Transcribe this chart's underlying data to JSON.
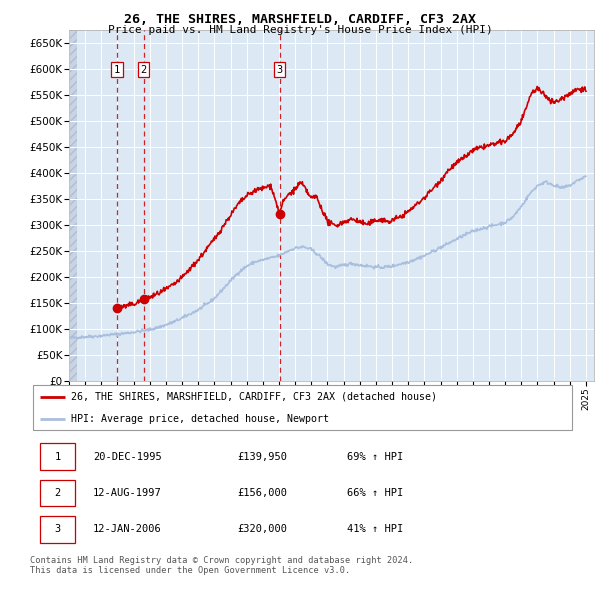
{
  "title": "26, THE SHIRES, MARSHFIELD, CARDIFF, CF3 2AX",
  "subtitle": "Price paid vs. HM Land Registry's House Price Index (HPI)",
  "legend_line1": "26, THE SHIRES, MARSHFIELD, CARDIFF, CF3 2AX (detached house)",
  "legend_line2": "HPI: Average price, detached house, Newport",
  "footnote": "Contains HM Land Registry data © Crown copyright and database right 2024.\nThis data is licensed under the Open Government Licence v3.0.",
  "sale_dates": [
    1995.96,
    1997.62,
    2006.04
  ],
  "sale_prices": [
    139950,
    156000,
    320000
  ],
  "sale_labels": [
    "1",
    "2",
    "3"
  ],
  "sale_info": [
    {
      "label": "1",
      "date": "20-DEC-1995",
      "price": "£139,950",
      "pct": "69% ↑ HPI"
    },
    {
      "label": "2",
      "date": "12-AUG-1997",
      "price": "£156,000",
      "pct": "66% ↑ HPI"
    },
    {
      "label": "3",
      "date": "12-JAN-2006",
      "price": "£320,000",
      "pct": "41% ↑ HPI"
    }
  ],
  "hpi_color": "#aabfde",
  "price_color": "#cc0000",
  "vline_color": "#cc0000",
  "background_color": "#dce9f5",
  "hatch_region_end": 1993.5,
  "ylim": [
    0,
    675000
  ],
  "yticks": [
    0,
    50000,
    100000,
    150000,
    200000,
    250000,
    300000,
    350000,
    400000,
    450000,
    500000,
    550000,
    600000,
    650000
  ],
  "xlim_start": 1993.0,
  "xlim_end": 2025.5,
  "xticks": [
    1993,
    1994,
    1995,
    1996,
    1997,
    1998,
    1999,
    2000,
    2001,
    2002,
    2003,
    2004,
    2005,
    2006,
    2007,
    2008,
    2009,
    2010,
    2011,
    2012,
    2013,
    2014,
    2015,
    2016,
    2017,
    2018,
    2019,
    2020,
    2021,
    2022,
    2023,
    2024,
    2025
  ],
  "hpi_anchors": [
    [
      1993.0,
      82000
    ],
    [
      1993.5,
      83000
    ],
    [
      1994.0,
      84000
    ],
    [
      1994.5,
      85000
    ],
    [
      1995.0,
      86000
    ],
    [
      1995.5,
      88000
    ],
    [
      1996.0,
      89000
    ],
    [
      1996.5,
      91000
    ],
    [
      1997.0,
      93000
    ],
    [
      1997.5,
      95500
    ],
    [
      1998.0,
      98000
    ],
    [
      1998.5,
      102000
    ],
    [
      1999.0,
      107000
    ],
    [
      1999.5,
      113000
    ],
    [
      2000.0,
      120000
    ],
    [
      2000.5,
      128000
    ],
    [
      2001.0,
      136000
    ],
    [
      2001.5,
      146000
    ],
    [
      2002.0,
      158000
    ],
    [
      2002.5,
      175000
    ],
    [
      2003.0,
      192000
    ],
    [
      2003.5,
      208000
    ],
    [
      2004.0,
      220000
    ],
    [
      2004.5,
      228000
    ],
    [
      2005.0,
      232000
    ],
    [
      2005.5,
      236000
    ],
    [
      2006.0,
      240000
    ],
    [
      2006.5,
      248000
    ],
    [
      2007.0,
      255000
    ],
    [
      2007.5,
      257000
    ],
    [
      2008.0,
      252000
    ],
    [
      2008.5,
      240000
    ],
    [
      2009.0,
      224000
    ],
    [
      2009.5,
      218000
    ],
    [
      2010.0,
      222000
    ],
    [
      2010.5,
      225000
    ],
    [
      2011.0,
      222000
    ],
    [
      2011.5,
      220000
    ],
    [
      2012.0,
      218000
    ],
    [
      2012.5,
      218000
    ],
    [
      2013.0,
      220000
    ],
    [
      2013.5,
      224000
    ],
    [
      2014.0,
      228000
    ],
    [
      2014.5,
      234000
    ],
    [
      2015.0,
      240000
    ],
    [
      2015.5,
      248000
    ],
    [
      2016.0,
      256000
    ],
    [
      2016.5,
      264000
    ],
    [
      2017.0,
      272000
    ],
    [
      2017.5,
      280000
    ],
    [
      2018.0,
      287000
    ],
    [
      2018.5,
      292000
    ],
    [
      2019.0,
      296000
    ],
    [
      2019.5,
      300000
    ],
    [
      2020.0,
      304000
    ],
    [
      2020.5,
      315000
    ],
    [
      2021.0,
      335000
    ],
    [
      2021.5,
      358000
    ],
    [
      2022.0,
      375000
    ],
    [
      2022.5,
      382000
    ],
    [
      2023.0,
      376000
    ],
    [
      2023.5,
      370000
    ],
    [
      2024.0,
      375000
    ],
    [
      2024.5,
      385000
    ],
    [
      2025.0,
      393000
    ]
  ],
  "prop_anchors": [
    [
      1995.96,
      139950
    ],
    [
      1996.2,
      141000
    ],
    [
      1996.5,
      143000
    ],
    [
      1997.0,
      147000
    ],
    [
      1997.62,
      156000
    ],
    [
      1998.0,
      160000
    ],
    [
      1998.5,
      167000
    ],
    [
      1999.0,
      175000
    ],
    [
      1999.5,
      185000
    ],
    [
      2000.0,
      198000
    ],
    [
      2000.5,
      215000
    ],
    [
      2001.0,
      232000
    ],
    [
      2001.5,
      252000
    ],
    [
      2002.0,
      272000
    ],
    [
      2002.5,
      295000
    ],
    [
      2003.0,
      318000
    ],
    [
      2003.5,
      340000
    ],
    [
      2004.0,
      355000
    ],
    [
      2004.5,
      365000
    ],
    [
      2005.0,
      370000
    ],
    [
      2005.5,
      375000
    ],
    [
      2006.04,
      320000
    ],
    [
      2006.2,
      340000
    ],
    [
      2006.5,
      355000
    ],
    [
      2007.0,
      368000
    ],
    [
      2007.3,
      380000
    ],
    [
      2007.5,
      375000
    ],
    [
      2007.8,
      360000
    ],
    [
      2008.0,
      350000
    ],
    [
      2008.3,
      355000
    ],
    [
      2008.5,
      340000
    ],
    [
      2008.8,
      320000
    ],
    [
      2009.0,
      305000
    ],
    [
      2009.3,
      300000
    ],
    [
      2009.5,
      298000
    ],
    [
      2009.8,
      302000
    ],
    [
      2010.0,
      305000
    ],
    [
      2010.3,
      308000
    ],
    [
      2010.5,
      310000
    ],
    [
      2010.8,
      308000
    ],
    [
      2011.0,
      305000
    ],
    [
      2011.3,
      302000
    ],
    [
      2011.5,
      300000
    ],
    [
      2011.8,
      305000
    ],
    [
      2012.0,
      308000
    ],
    [
      2012.3,
      310000
    ],
    [
      2012.5,
      308000
    ],
    [
      2012.8,
      305000
    ],
    [
      2013.0,
      308000
    ],
    [
      2013.3,
      312000
    ],
    [
      2013.5,
      315000
    ],
    [
      2013.8,
      320000
    ],
    [
      2014.0,
      325000
    ],
    [
      2014.5,
      338000
    ],
    [
      2015.0,
      352000
    ],
    [
      2015.5,
      368000
    ],
    [
      2016.0,
      385000
    ],
    [
      2016.5,
      405000
    ],
    [
      2017.0,
      418000
    ],
    [
      2017.5,
      430000
    ],
    [
      2018.0,
      442000
    ],
    [
      2018.5,
      448000
    ],
    [
      2019.0,
      452000
    ],
    [
      2019.5,
      456000
    ],
    [
      2020.0,
      460000
    ],
    [
      2020.5,
      475000
    ],
    [
      2021.0,
      500000
    ],
    [
      2021.3,
      520000
    ],
    [
      2021.5,
      545000
    ],
    [
      2021.8,
      558000
    ],
    [
      2022.0,
      562000
    ],
    [
      2022.2,
      555000
    ],
    [
      2022.5,
      548000
    ],
    [
      2022.8,
      540000
    ],
    [
      2023.0,
      535000
    ],
    [
      2023.3,
      538000
    ],
    [
      2023.5,
      542000
    ],
    [
      2023.8,
      548000
    ],
    [
      2024.0,
      552000
    ],
    [
      2024.3,
      558000
    ],
    [
      2024.5,
      560000
    ],
    [
      2024.8,
      562000
    ],
    [
      2025.0,
      558000
    ]
  ]
}
